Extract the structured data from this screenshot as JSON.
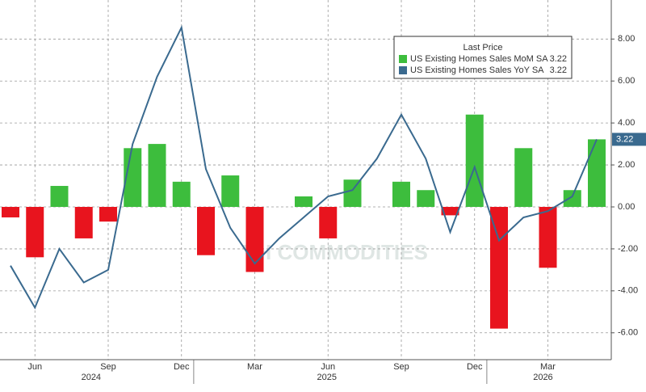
{
  "chart_data": {
    "type": "bar-line",
    "categories": [
      null,
      "Jun",
      null,
      null,
      "Sep",
      null,
      null,
      "Dec",
      null,
      null,
      "Mar",
      null,
      null,
      "Jun",
      null,
      null,
      "Sep",
      null,
      null,
      "Dec",
      null,
      null,
      "Mar",
      null,
      null
    ],
    "years": [
      "2024",
      "2025",
      "2026"
    ],
    "legend_title": "Last Price",
    "series": [
      {
        "name": "US Existing Homes Sales MoM SA",
        "type": "bar",
        "color": "#3dbd3d",
        "negative_color": "#e8141e",
        "values": [
          -0.5,
          -2.4,
          1.0,
          -1.5,
          -0.7,
          2.8,
          3.0,
          1.2,
          -2.3,
          1.5,
          -3.1,
          null,
          0.5,
          -1.5,
          1.3,
          null,
          1.2,
          0.8,
          -0.4,
          4.4,
          -5.8,
          2.8,
          -2.9,
          0.8,
          3.22
        ]
      },
      {
        "name": "US Existing Homes Sales YoY SA",
        "type": "line",
        "color": "#3a6a8f",
        "values": [
          -2.8,
          -4.8,
          -2.0,
          -3.6,
          -3.0,
          3.0,
          6.2,
          8.55,
          1.8,
          -1.0,
          -2.7,
          -1.5,
          -0.5,
          0.5,
          0.8,
          2.3,
          4.4,
          2.3,
          -1.2,
          1.9,
          -1.6,
          -0.5,
          -0.2,
          0.5,
          3.22
        ]
      }
    ],
    "ylim": [
      -7.28,
      9.86
    ],
    "yticks": [
      {
        "value": 8,
        "label": "8.00"
      },
      {
        "value": 6,
        "label": "6.00"
      },
      {
        "value": 4,
        "label": "4.00"
      },
      {
        "value": 2,
        "label": "2.00"
      },
      {
        "value": 0,
        "label": "0.00"
      },
      {
        "value": -2,
        "label": "-2.00"
      },
      {
        "value": -4,
        "label": "-4.00"
      },
      {
        "value": -6,
        "label": "-6.00"
      }
    ],
    "grid": true,
    "watermark": "VH COMMODITIES"
  }
}
